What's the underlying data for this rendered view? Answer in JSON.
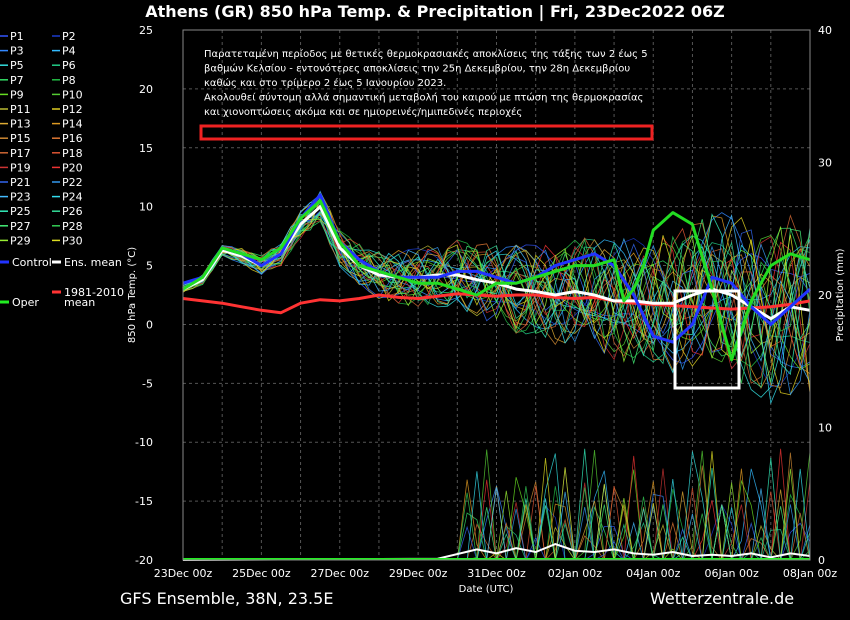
{
  "chart_data": {
    "type": "line",
    "title": "Athens  (GR)  850 hPa Temp. & Precipitation | Fri, 23Dec2022 06Z",
    "xlabel": "Date (UTC)",
    "ylabel_left": "850 hPa Temp. (°C)",
    "ylabel_right": "Precipitation (mm)",
    "ylim_left": [
      -20,
      25
    ],
    "ylim_right": [
      0,
      40
    ],
    "y_ticks_left": [
      "25",
      "20",
      "15",
      "10",
      "5",
      "0",
      "-5",
      "-10",
      "-15",
      "-20"
    ],
    "y_ticks_right": [
      "40",
      "30",
      "20",
      "10",
      "0"
    ],
    "x_ticks": [
      "23Dec 00z",
      "25Dec 00z",
      "27Dec 00z",
      "29Dec 00z",
      "31Dec 00z",
      "02Jan 00z",
      "04Jan 00z",
      "06Jan 00z",
      "08Jan 00z"
    ],
    "x_days": [
      0,
      16
    ],
    "grid": true,
    "legend_placement": "left",
    "footer_left": "GFS Ensemble, 38N, 23.5E",
    "footer_right": "Wetterzentrale.de",
    "annotation": [
      "Παρατεταμένη περίοδος με θετικές θερμοκρασιακές αποκλίσεις της τάξης των 2 έως 5",
      "βαθμών Κελσίου - εντονότερες αποκλίσεις την 25η Δεκεμβρίου, την 28η Δεκεμβρίου",
      "καθώς και στο τρίμερο 2 έως 5 Ιανουρίου 2023.",
      "Ακολουθεί σύντομη αλλά σημαντική μεταβολή του καιρού με πτώση της θερμοκρασίας",
      "και χιονοπτώσεις ακόμα και σε ημιορεινές/ημιπεδινές περιοχές"
    ],
    "legend": [
      {
        "name": "P1",
        "color": "#3355ff"
      },
      {
        "name": "P2",
        "color": "#1a3acc"
      },
      {
        "name": "P3",
        "color": "#3388ff"
      },
      {
        "name": "P4",
        "color": "#33bbff"
      },
      {
        "name": "P5",
        "color": "#33dddd"
      },
      {
        "name": "P6",
        "color": "#22cc88"
      },
      {
        "name": "P7",
        "color": "#33dd66"
      },
      {
        "name": "P8",
        "color": "#22bb44"
      },
      {
        "name": "P9",
        "color": "#66dd22"
      },
      {
        "name": "P10",
        "color": "#55cc33"
      },
      {
        "name": "P11",
        "color": "#bbbb33"
      },
      {
        "name": "P12",
        "color": "#ddcc22"
      },
      {
        "name": "P13",
        "color": "#ddaa33"
      },
      {
        "name": "P14",
        "color": "#dd9922"
      },
      {
        "name": "P15",
        "color": "#cc8833"
      },
      {
        "name": "P16",
        "color": "#dd7733"
      },
      {
        "name": "P17",
        "color": "#cc6633"
      },
      {
        "name": "P18",
        "color": "#dd5533"
      },
      {
        "name": "P19",
        "color": "#cc3333"
      },
      {
        "name": "P20",
        "color": "#ee3333"
      },
      {
        "name": "P21",
        "color": "#3366ee"
      },
      {
        "name": "P22",
        "color": "#3399ee"
      },
      {
        "name": "P23",
        "color": "#44bbff"
      },
      {
        "name": "P24",
        "color": "#33ddee"
      },
      {
        "name": "P25",
        "color": "#33eebb"
      },
      {
        "name": "P26",
        "color": "#33dd99"
      },
      {
        "name": "P27",
        "color": "#44ee77"
      },
      {
        "name": "P28",
        "color": "#33cc55"
      },
      {
        "name": "P29",
        "color": "#99ee33"
      },
      {
        "name": "P30",
        "color": "#dddd22"
      },
      {
        "name": "Control",
        "color": "#2233ff"
      },
      {
        "name": "Ens. mean",
        "color": "#ffffff"
      },
      {
        "name": "Oper",
        "color": "#22ee22"
      },
      {
        "name": "1981-2010 mean",
        "color": "#ff3333"
      }
    ],
    "series": [
      {
        "name": "Oper",
        "color": "#22dd22",
        "x": [
          0,
          0.5,
          1,
          1.5,
          2,
          2.5,
          3,
          3.5,
          4,
          4.5,
          5,
          5.5,
          6,
          6.5,
          7,
          7.5,
          8,
          8.5,
          9,
          9.5,
          10,
          10.5,
          11,
          11.25,
          11.5,
          11.75,
          12,
          12.5,
          13,
          13.5,
          14,
          14.5,
          15,
          15.5,
          16
        ],
        "y": [
          3,
          4,
          6.5,
          6,
          5.5,
          6.5,
          9,
          10.5,
          7,
          5,
          4.5,
          4,
          3.5,
          3.5,
          3,
          2.5,
          3.5,
          3.5,
          4,
          4.5,
          5,
          5,
          5.5,
          2,
          3,
          5,
          8,
          9.5,
          8.5,
          3,
          -3,
          2,
          5,
          6,
          5.5
        ]
      },
      {
        "name": "Control",
        "color": "#2233ff",
        "x": [
          0,
          0.5,
          1,
          1.5,
          2,
          2.5,
          3,
          3.5,
          4,
          4.5,
          5,
          5.5,
          6,
          6.5,
          7,
          7.5,
          8,
          8.5,
          9,
          9.5,
          10,
          10.5,
          11,
          11.5,
          12,
          12.5,
          13,
          13.5,
          14,
          14.5,
          15,
          15.5,
          16
        ],
        "y": [
          3.5,
          4,
          6.5,
          6,
          5,
          6,
          9,
          11,
          7,
          5.5,
          4.5,
          4,
          4,
          4,
          4.5,
          4.5,
          4,
          3.5,
          4,
          5,
          5.5,
          6,
          5,
          2.5,
          -1,
          -1.5,
          0,
          4,
          3.5,
          1.5,
          0,
          1.5,
          3
        ]
      },
      {
        "name": "Ens. mean",
        "color": "#ffffff",
        "x": [
          0,
          0.5,
          1,
          1.5,
          2,
          2.5,
          3,
          3.5,
          4,
          4.5,
          5,
          5.5,
          6,
          6.5,
          7,
          7.5,
          8,
          8.5,
          9,
          9.5,
          10,
          10.5,
          11,
          11.5,
          12,
          12.5,
          13,
          13.5,
          14,
          14.5,
          15,
          15.5,
          16
        ],
        "y": [
          3,
          3.8,
          6.3,
          5.8,
          5,
          6,
          8.5,
          10,
          6.5,
          5,
          4.2,
          4,
          4,
          4.2,
          4.2,
          3.8,
          3.5,
          3,
          2.8,
          2.5,
          2.8,
          2.5,
          2,
          2,
          1.8,
          1.8,
          2.5,
          3,
          2.5,
          1.5,
          0.5,
          1.5,
          1.2
        ]
      },
      {
        "name": "1981-2010 mean",
        "color": "#ff3333",
        "x": [
          0,
          0.5,
          1,
          1.5,
          2,
          2.5,
          3,
          3.5,
          4,
          4.5,
          5,
          5.5,
          6,
          6.5,
          7,
          7.5,
          8,
          8.5,
          9,
          9.5,
          10,
          10.5,
          11,
          11.5,
          12,
          12.5,
          13,
          13.5,
          14,
          14.5,
          15,
          15.5,
          16
        ],
        "y": [
          2.2,
          2,
          1.8,
          1.5,
          1.2,
          1,
          1.8,
          2.1,
          2,
          2.2,
          2.5,
          2.3,
          2.2,
          2.4,
          2.6,
          2.5,
          2.4,
          2.5,
          2.5,
          2.3,
          2.2,
          2.3,
          2,
          1.8,
          1.7,
          1.6,
          1.5,
          1.4,
          1.3,
          1.4,
          1.5,
          1.7,
          2
        ]
      }
    ],
    "precip_series": [
      {
        "name": "Ens. mean",
        "color": "#ffffff",
        "x": [
          0,
          6.5,
          7.5,
          8,
          8.5,
          9,
          9.5,
          10,
          10.5,
          11,
          11.5,
          12,
          12.5,
          13,
          13.5,
          14,
          14.5,
          15,
          15.5,
          16
        ],
        "y": [
          0,
          0.1,
          0.8,
          0.5,
          0.9,
          0.6,
          1.2,
          0.7,
          0.6,
          0.8,
          0.5,
          0.4,
          0.6,
          0.3,
          0.4,
          0.3,
          0.5,
          0.2,
          0.5,
          0.3
        ]
      }
    ]
  }
}
